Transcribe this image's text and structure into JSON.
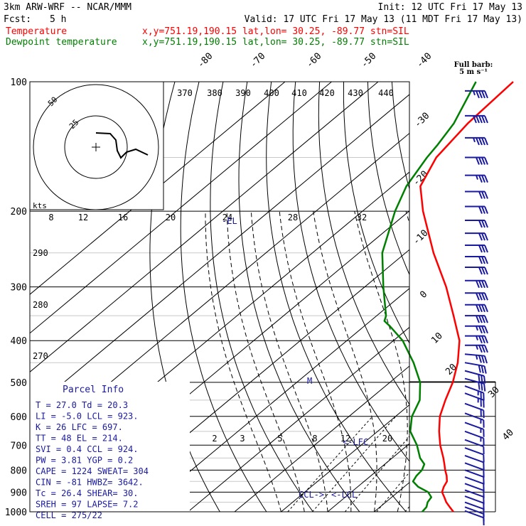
{
  "header": {
    "model": "3km ARW-WRF -- NCAR/MMM",
    "init": "Init: 12 UTC Fri 17 May 13",
    "fcst_label": "Fcst:",
    "fcst_value": "5 h",
    "valid": "Valid: 17 UTC Fri 17 May 13 (11 MDT Fri 17 May 13)"
  },
  "legend": [
    {
      "name": "Temperature",
      "info": "x,y=751.19,190.15   lat,lon= 30.25, -89.77  stn=SIL",
      "color": "#ff0000"
    },
    {
      "name": "Dewpoint temperature",
      "info": "x,y=751.19,190.15   lat,lon= 30.25, -89.77  stn=SIL",
      "color": "#008000"
    }
  ],
  "barb_key": {
    "line1": "Full barb:",
    "line2": "5 m s⁻¹"
  },
  "hodograph": {
    "units": "kts",
    "ring_labels": [
      "25",
      "50"
    ]
  },
  "parcel_info": {
    "title": "Parcel Info",
    "rows": [
      "T  =    27.0  Td =  20.3",
      "LI =    -5.0  LCL =  923.",
      "K  =      26  LFC =  697.",
      "TT =      48  EL  =  214.",
      "SVI =    0.4  CCL =  924.",
      "PW =    3.81  YGP =   0.2",
      "CAPE =  1224  SWEAT=  304",
      "CIN =    -81  HWBZ= 3642.",
      "Tc =    26.4  SHEAR=  30.",
      "SREH =    97  LAPSE=  7.2",
      "CELL = 275/22"
    ]
  },
  "chart_data": {
    "type": "line",
    "diagram": "skew-T log-p",
    "yaxis": {
      "label": "",
      "scale": "log",
      "ticks": [
        100,
        200,
        300,
        400,
        500,
        600,
        700,
        800,
        900,
        1000
      ],
      "range": [
        1000,
        100
      ]
    },
    "temperature_labels_top": [
      "-80",
      "-70",
      "-60",
      "-50",
      "-40"
    ],
    "temperature_labels_right": [
      "-30",
      "-20",
      "-10",
      "0",
      "10",
      "20",
      "30",
      "40"
    ],
    "theta_labels_top": [
      "370",
      "380",
      "390",
      "400",
      "410",
      "420",
      "430",
      "440"
    ],
    "theta_labels_left": [
      "290",
      "280",
      "270"
    ],
    "mixing_ratio_labels_upper": [
      "8",
      "12",
      "16",
      "20",
      "24",
      "28",
      "32"
    ],
    "mixing_ratio_labels_lower": [
      "2",
      "3",
      "5",
      "8",
      "12",
      "20"
    ],
    "level_markers": [
      {
        "label": "EL",
        "p": 214
      },
      {
        "label": "LFC",
        "p": 697
      },
      {
        "label": "LCL",
        "p": 923
      },
      {
        "label": "CCL",
        "p": 924
      },
      {
        "label": "M",
        "p": 500
      }
    ],
    "grid": true,
    "series": [
      {
        "name": "Temperature",
        "color": "#ff0000",
        "p": [
          1000,
          975,
          950,
          925,
          900,
          875,
          850,
          825,
          800,
          775,
          750,
          700,
          650,
          600,
          550,
          500,
          450,
          400,
          350,
          300,
          250,
          200,
          175,
          150,
          125,
          100
        ],
        "t": [
          27.0,
          25.0,
          23.0,
          21.3,
          19.5,
          18.5,
          17.8,
          16.3,
          14.5,
          12.8,
          11.0,
          7.0,
          3.2,
          -0.5,
          -3.5,
          -6.5,
          -10.5,
          -15.8,
          -23.5,
          -32.5,
          -44.0,
          -57.0,
          -64.0,
          -68.0,
          -70.0,
          -71.0
        ]
      },
      {
        "name": "Dewpoint temperature",
        "color": "#008000",
        "p": [
          1000,
          975,
          950,
          925,
          900,
          875,
          850,
          825,
          800,
          775,
          750,
          700,
          650,
          600,
          550,
          500,
          450,
          400,
          370,
          360,
          350,
          300,
          250,
          200,
          175,
          150,
          140,
          125,
          100
        ],
        "t": [
          20.3,
          20.0,
          19.0,
          18.5,
          16.5,
          13.0,
          10.5,
          9.8,
          9.5,
          8.5,
          6.0,
          2.0,
          -3.0,
          -6.5,
          -9.0,
          -13.5,
          -20.0,
          -28.0,
          -34.5,
          -37.0,
          -38.0,
          -46.0,
          -55.0,
          -63.0,
          -67.0,
          -70.0,
          -71.0,
          -73.0,
          -79.0
        ]
      }
    ],
    "winds": [
      {
        "p": 105,
        "spd": 45,
        "dir": 270
      },
      {
        "p": 120,
        "spd": 50,
        "dir": 270
      },
      {
        "p": 135,
        "spd": 45,
        "dir": 270
      },
      {
        "p": 150,
        "spd": 40,
        "dir": 270
      },
      {
        "p": 165,
        "spd": 35,
        "dir": 270
      },
      {
        "p": 180,
        "spd": 30,
        "dir": 270
      },
      {
        "p": 195,
        "spd": 30,
        "dir": 270
      },
      {
        "p": 210,
        "spd": 30,
        "dir": 270
      },
      {
        "p": 225,
        "spd": 30,
        "dir": 270
      },
      {
        "p": 240,
        "spd": 30,
        "dir": 270
      },
      {
        "p": 255,
        "spd": 30,
        "dir": 270
      },
      {
        "p": 270,
        "spd": 30,
        "dir": 270
      },
      {
        "p": 290,
        "spd": 40,
        "dir": 270
      },
      {
        "p": 310,
        "spd": 40,
        "dir": 270
      },
      {
        "p": 330,
        "spd": 40,
        "dir": 270
      },
      {
        "p": 350,
        "spd": 40,
        "dir": 270
      },
      {
        "p": 370,
        "spd": 35,
        "dir": 270
      },
      {
        "p": 390,
        "spd": 35,
        "dir": 270
      },
      {
        "p": 410,
        "spd": 35,
        "dir": 270
      },
      {
        "p": 430,
        "spd": 35,
        "dir": 275
      },
      {
        "p": 450,
        "spd": 30,
        "dir": 280
      },
      {
        "p": 470,
        "spd": 30,
        "dir": 285
      },
      {
        "p": 490,
        "spd": 30,
        "dir": 285
      },
      {
        "p": 510,
        "spd": 25,
        "dir": 290
      },
      {
        "p": 530,
        "spd": 25,
        "dir": 290
      },
      {
        "p": 560,
        "spd": 20,
        "dir": 290
      },
      {
        "p": 590,
        "spd": 15,
        "dir": 290
      },
      {
        "p": 620,
        "spd": 15,
        "dir": 290
      },
      {
        "p": 650,
        "spd": 15,
        "dir": 290
      },
      {
        "p": 680,
        "spd": 10,
        "dir": 290
      },
      {
        "p": 710,
        "spd": 10,
        "dir": 290
      },
      {
        "p": 740,
        "spd": 10,
        "dir": 290
      },
      {
        "p": 770,
        "spd": 10,
        "dir": 290
      },
      {
        "p": 800,
        "spd": 10,
        "dir": 290
      },
      {
        "p": 830,
        "spd": 10,
        "dir": 290
      },
      {
        "p": 860,
        "spd": 10,
        "dir": 290
      },
      {
        "p": 890,
        "spd": 10,
        "dir": 290
      },
      {
        "p": 920,
        "spd": 10,
        "dir": 290
      },
      {
        "p": 950,
        "spd": 10,
        "dir": 290
      },
      {
        "p": 975,
        "spd": 10,
        "dir": 290
      },
      {
        "p": 995,
        "spd": 10,
        "dir": 290
      }
    ],
    "hodograph_trace": [
      [
        135,
        187
      ],
      [
        155,
        188
      ],
      [
        163,
        197
      ],
      [
        165,
        212
      ],
      [
        170,
        222
      ],
      [
        178,
        214
      ],
      [
        191,
        210
      ],
      [
        208,
        218
      ]
    ]
  }
}
